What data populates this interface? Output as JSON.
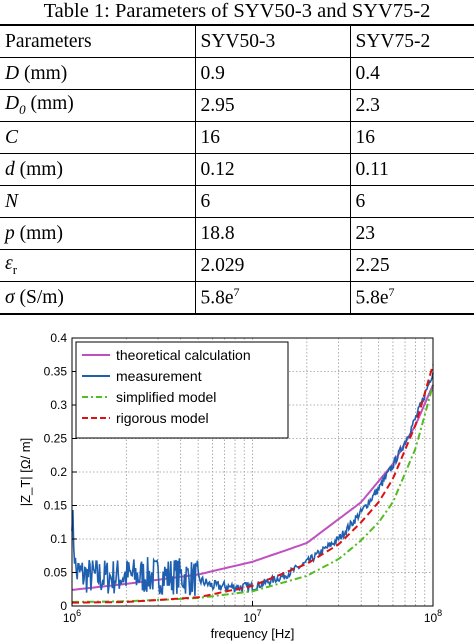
{
  "caption": "Table 1: Parameters of SYV50-3 and SYV75-2",
  "table": {
    "headers": [
      "Parameters",
      "SYV50-3",
      "SYV75-2"
    ],
    "rows": [
      {
        "symbol": "D",
        "sub": "",
        "unit": " (mm)",
        "v1": "0.9",
        "v1_sup": "",
        "v2": "0.4",
        "v2_sup": ""
      },
      {
        "symbol": "D",
        "sub": "0",
        "unit": " (mm)",
        "v1": "2.95",
        "v1_sup": "",
        "v2": "2.3",
        "v2_sup": ""
      },
      {
        "symbol": "C",
        "sub": "",
        "unit": "",
        "v1": "16",
        "v1_sup": "",
        "v2": "16",
        "v2_sup": ""
      },
      {
        "symbol": "d",
        "sub": "",
        "unit": " (mm)",
        "v1": "0.12",
        "v1_sup": "",
        "v2": "0.11",
        "v2_sup": ""
      },
      {
        "symbol": "N",
        "sub": "",
        "unit": "",
        "v1": "6",
        "v1_sup": "",
        "v2": "6",
        "v2_sup": ""
      },
      {
        "symbol": "p",
        "sub": "",
        "unit": " (mm)",
        "v1": "18.8",
        "v1_sup": "",
        "v2": "23",
        "v2_sup": ""
      },
      {
        "symbol": "ε",
        "sub": "r",
        "unit": "",
        "v1": "2.029",
        "v1_sup": "",
        "v2": "2.25",
        "v2_sup": ""
      },
      {
        "symbol": "σ",
        "sub": "",
        "unit": " (S/m)",
        "v1": "5.8e",
        "v1_sup": "7",
        "v2": "5.8e",
        "v2_sup": "7"
      }
    ]
  },
  "chart_data": {
    "type": "line",
    "xscale": "log",
    "xlim": [
      1000000,
      100000000
    ],
    "ylim": [
      0,
      0.4
    ],
    "xticks": [
      1000000,
      10000000,
      100000000
    ],
    "xtick_labels": [
      "10^6",
      "10^7",
      "10^8"
    ],
    "yticks": [
      0,
      0.05,
      0.1,
      0.15,
      0.2,
      0.25,
      0.3,
      0.35,
      0.4
    ],
    "ytick_labels": [
      "0",
      "0.05",
      "0.1",
      "0.15",
      "0.2",
      "0.25",
      "0.3",
      "0.35",
      "0.4"
    ],
    "xlabel": "frequency [Hz]",
    "ylabel": "|Z_T| [Ω/ m]",
    "grid": true,
    "legend_position": "top-left",
    "series": [
      {
        "name": "theoretical calculation",
        "color": "#c050c0",
        "style": "solid",
        "x": [
          1000000,
          2000000,
          5000000,
          10000000,
          20000000,
          40000000,
          60000000,
          80000000,
          100000000
        ],
        "y": [
          0.024,
          0.033,
          0.047,
          0.066,
          0.094,
          0.155,
          0.212,
          0.27,
          0.33
        ]
      },
      {
        "name": "measurement",
        "color": "#1f5fb0",
        "style": "noisy",
        "x": [
          1000000,
          1050000,
          1200000,
          1500000,
          2000000,
          3000000,
          4000000,
          5000000,
          6000000,
          8000000,
          10000000,
          15000000,
          20000000,
          30000000,
          40000000,
          50000000,
          60000000,
          70000000,
          80000000,
          90000000,
          100000000
        ],
        "y": [
          0.14,
          0.05,
          0.045,
          0.043,
          0.045,
          0.045,
          0.045,
          0.04,
          0.03,
          0.028,
          0.028,
          0.045,
          0.065,
          0.1,
          0.14,
          0.175,
          0.21,
          0.245,
          0.28,
          0.315,
          0.35
        ]
      },
      {
        "name": "simplified model",
        "color": "#55bb22",
        "style": "dashdot",
        "x": [
          1000000,
          2000000,
          3000000,
          5000000,
          10000000,
          20000000,
          30000000,
          40000000,
          50000000,
          60000000,
          80000000,
          100000000
        ],
        "y": [
          0.006,
          0.007,
          0.009,
          0.012,
          0.022,
          0.045,
          0.07,
          0.098,
          0.125,
          0.155,
          0.235,
          0.33
        ]
      },
      {
        "name": "rigorous model",
        "color": "#dd1111",
        "style": "dashed",
        "x": [
          1000000,
          2000000,
          3000000,
          5000000,
          10000000,
          20000000,
          30000000,
          40000000,
          50000000,
          60000000,
          80000000,
          100000000
        ],
        "y": [
          0.005,
          0.006,
          0.009,
          0.013,
          0.03,
          0.063,
          0.092,
          0.125,
          0.155,
          0.19,
          0.27,
          0.36
        ]
      }
    ]
  }
}
